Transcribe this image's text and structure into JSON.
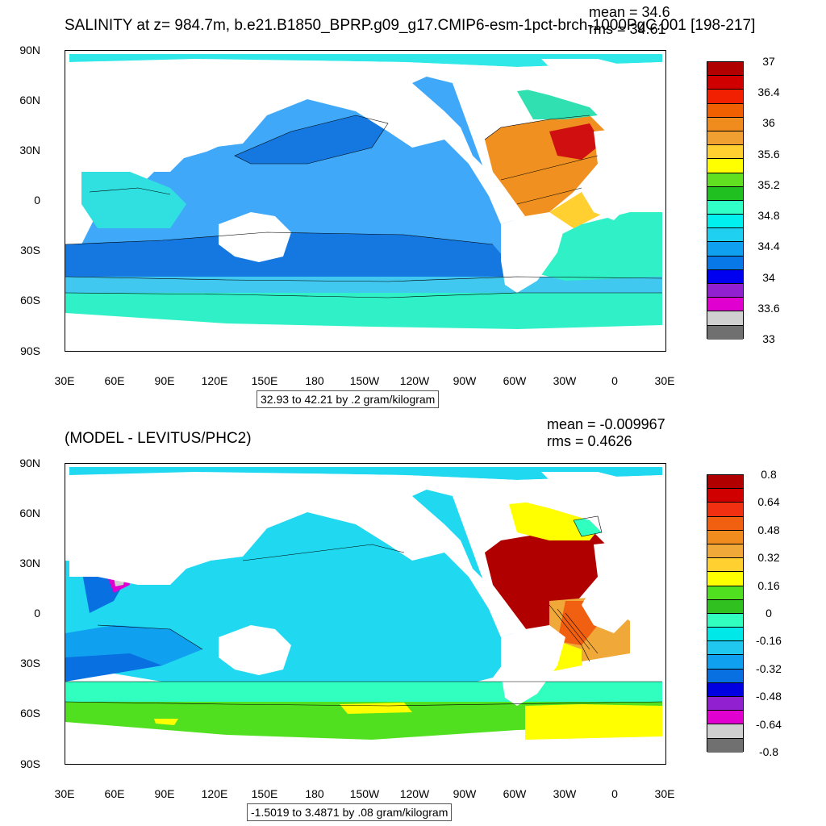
{
  "panel1": {
    "title": "SALINITY at z= 984.7m, b.e21.B1850_BPRP.g09_g17.CMIP6-esm-1pct-brch-1000PgC.001 [198-217]",
    "mean_label": "mean = 34.6",
    "rms_label": "rms = 34.61",
    "range_label": "32.93 to 42.21 by .2 gram/kilogram",
    "colorbar_labels": [
      "37",
      "36.4",
      "36",
      "35.6",
      "35.2",
      "34.8",
      "34.4",
      "34",
      "33.6",
      "33"
    ],
    "colorbar_colors": [
      "#b00000",
      "#d00000",
      "#f02000",
      "#f06000",
      "#f08c1e",
      "#f0a030",
      "#ffd030",
      "#ffff00",
      "#60e020",
      "#20c020",
      "#30ffc8",
      "#00f0f0",
      "#20d0f0",
      "#10a0f0",
      "#0878e8",
      "#0000f0",
      "#9020d0",
      "#e000d0",
      "#d0d0d0",
      "#707070"
    ],
    "ocean_colors": {
      "base": "#40a8f8",
      "deep": "#1478e0",
      "tropic": "#30e0e0",
      "south": "#30f0c8",
      "atlantic": "#f09020",
      "atlantic_hot": "#d01010"
    }
  },
  "panel2": {
    "title": "(MODEL - LEVITUS/PHC2)",
    "mean_label": "mean = -0.009967",
    "rms_label": "rms = 0.4626",
    "range_label": "-1.5019 to 3.4871 by .08 gram/kilogram",
    "colorbar_labels": [
      "0.8",
      "0.64",
      "0.48",
      "0.32",
      "0.16",
      "0",
      "-0.16",
      "-0.32",
      "-0.48",
      "-0.64",
      "-0.8"
    ],
    "colorbar_colors": [
      "#b00000",
      "#d00000",
      "#f03010",
      "#f06010",
      "#f08c1e",
      "#f0a838",
      "#ffd030",
      "#ffff00",
      "#50e020",
      "#30c020",
      "#30ffc0",
      "#00e8e8",
      "#20c8f0",
      "#10a0f0",
      "#0870e0",
      "#0000e0",
      "#9020d0",
      "#e000d0",
      "#d0d0d0",
      "#707070"
    ],
    "ocean_colors": {
      "base": "#20d8f0",
      "blue": "#10a0f0",
      "green": "#50e020",
      "yellow": "#ffff00",
      "red": "#b00000",
      "orange": "#f09020"
    }
  },
  "axes": {
    "y_ticks": [
      "90N",
      "60N",
      "30N",
      "0",
      "30S",
      "60S",
      "90S"
    ],
    "x_ticks": [
      "30E",
      "60E",
      "90E",
      "120E",
      "150E",
      "180",
      "150W",
      "120W",
      "90W",
      "60W",
      "30W",
      "0",
      "30E"
    ]
  }
}
